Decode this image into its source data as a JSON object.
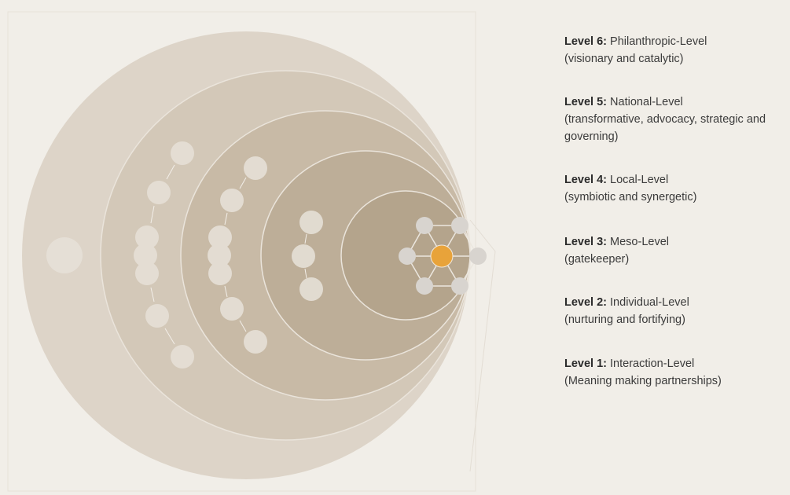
{
  "levels": [
    {
      "level": "Level 6:",
      "name": "Philanthropic-Level",
      "description": "(visionary and catalytic)"
    },
    {
      "level": "Level 5:",
      "name": "National-Level",
      "description": "(transformative, advocacy, strategic and governing)"
    },
    {
      "level": "Level 4:",
      "name": "Local-Level",
      "description": "(symbiotic and synergetic)"
    },
    {
      "level": "Level 3:",
      "name": "Meso-Level",
      "description": "(gatekeeper)"
    },
    {
      "level": "Level 2:",
      "name": "Individual-Level",
      "description": "(nurturing and fortifying)"
    },
    {
      "level": "Level 1:",
      "name": "Interaction-Level",
      "description": "(Meaning making partnerships)"
    }
  ]
}
